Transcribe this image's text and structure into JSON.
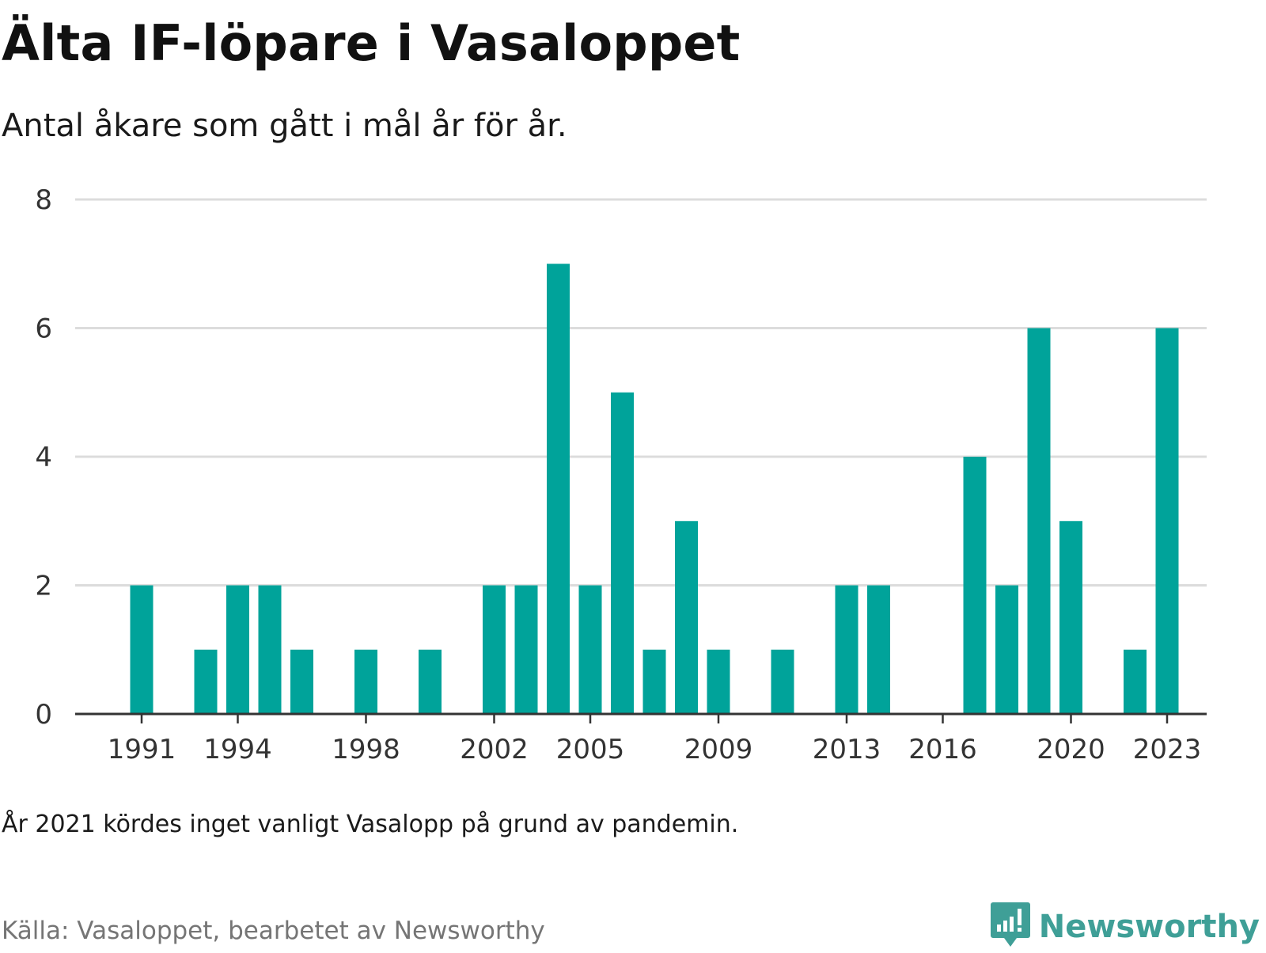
{
  "title": "Älta IF-löpare i Vasaloppet",
  "subtitle": "Antal åkare som gått i mål år för år.",
  "note": "År 2021 kördes inget vanligt Vasalopp på grund av pandemin.",
  "source": "Källa: Vasaloppet, bearbetet av Newsworthy",
  "brand": {
    "name": "Newsworthy",
    "icon": "newsworthy-logo-icon"
  },
  "colors": {
    "bar": "#00a39a",
    "grid": "#dcdcdc",
    "axis": "#333333",
    "brand": "#3f9f97"
  },
  "chart_data": {
    "type": "bar",
    "title": "Älta IF-löpare i Vasaloppet",
    "subtitle": "Antal åkare som gått i mål år för år.",
    "categories": [
      1991,
      1992,
      1993,
      1994,
      1995,
      1996,
      1997,
      1998,
      1999,
      2000,
      2001,
      2002,
      2003,
      2004,
      2005,
      2006,
      2007,
      2008,
      2009,
      2010,
      2011,
      2012,
      2013,
      2014,
      2015,
      2016,
      2017,
      2018,
      2019,
      2020,
      2021,
      2022,
      2023
    ],
    "values": [
      2,
      0,
      1,
      2,
      2,
      1,
      0,
      1,
      0,
      1,
      0,
      2,
      2,
      7,
      2,
      5,
      1,
      3,
      1,
      0,
      1,
      0,
      2,
      2,
      0,
      0,
      4,
      2,
      6,
      3,
      0,
      1,
      6
    ],
    "x_tick_labels": [
      "1991",
      "1994",
      "1998",
      "2002",
      "2005",
      "2009",
      "2013",
      "2016",
      "2020",
      "2023"
    ],
    "y_ticks": [
      0,
      2,
      4,
      6,
      8
    ],
    "ylim": [
      0,
      8
    ],
    "xlabel": "",
    "ylabel": "",
    "grid": true
  }
}
